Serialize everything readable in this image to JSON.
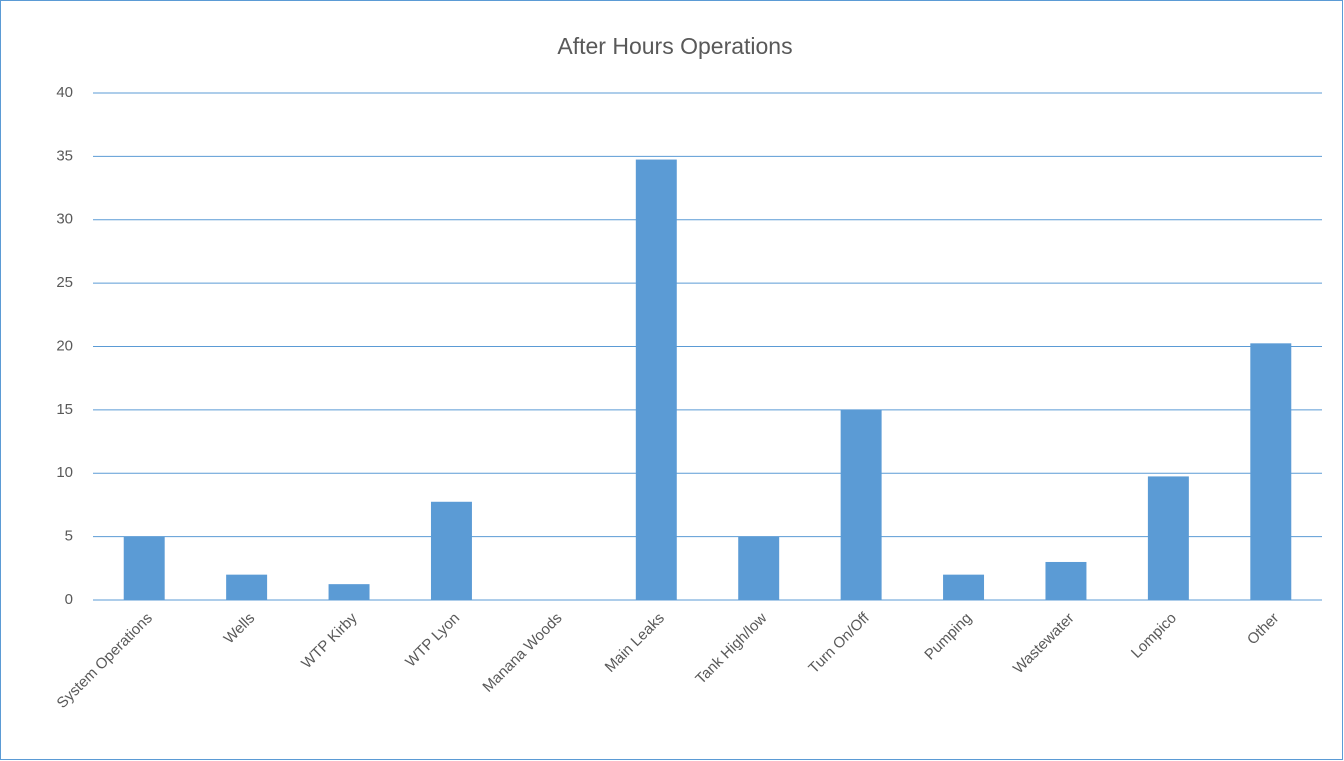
{
  "chart_data": {
    "type": "bar",
    "title": "After Hours Operations",
    "categories": [
      "System Operations",
      "Wells",
      "WTP Kirby",
      "WTP Lyon",
      "Manana Woods",
      "Main Leaks",
      "Tank High/low",
      "Turn On/Off",
      "Pumping",
      "Wastewater",
      "Lompico",
      "Other"
    ],
    "values": [
      5,
      2,
      1.25,
      7.75,
      0,
      34.75,
      5,
      15,
      2,
      3,
      9.75,
      20.25
    ],
    "color": "#5b9bd5",
    "ylim": [
      0,
      40
    ],
    "yticks": [
      0,
      5,
      10,
      15,
      20,
      25,
      30,
      35,
      40
    ],
    "grid": true
  }
}
